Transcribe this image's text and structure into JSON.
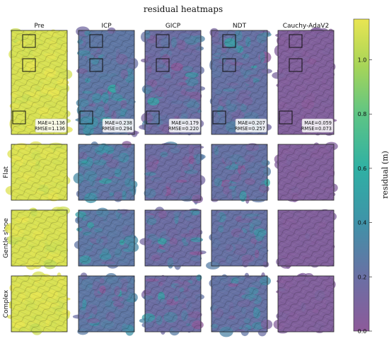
{
  "chart_data": {
    "type": "heatmap",
    "title": "residual heatmaps",
    "columns": [
      "Pre",
      "ICP",
      "GICP",
      "NDT",
      "Cauchy-AdaV2"
    ],
    "rows": [
      "Flat",
      "Gentle slope",
      "Complex"
    ],
    "metrics": [
      {
        "method": "Pre",
        "mae_label": "MAE=1.136",
        "rmse_label": "RMSE=1.136",
        "mean_residual": 1.1
      },
      {
        "method": "ICP",
        "mae_label": "MAE=0.238",
        "rmse_label": "RMSE=0.294",
        "mean_residual": 0.24
      },
      {
        "method": "GICP",
        "mae_label": "MAE=0.179",
        "rmse_label": "RMSE=0.220",
        "mean_residual": 0.18
      },
      {
        "method": "NDT",
        "mae_label": "MAE=0.207",
        "rmse_label": "RMSE=0.257",
        "mean_residual": 0.21
      },
      {
        "method": "Cauchy-AdaV2",
        "mae_label": "MAE=0.059",
        "rmse_label": "RMSE=0.073",
        "mean_residual": 0.06
      }
    ],
    "colorbar": {
      "label": "residual (m)",
      "range": [
        0.0,
        1.15
      ],
      "ticks": [
        "0.0",
        "0.2",
        "0.4",
        "0.6",
        "0.8",
        "1.0"
      ],
      "tick_values": [
        0.0,
        0.2,
        0.4,
        0.6,
        0.8,
        1.0
      ],
      "colormap": [
        "#8d5a9a",
        "#6b6fa4",
        "#3f93a8",
        "#2fb0a4",
        "#5cc486",
        "#a7d558",
        "#e9e552"
      ]
    }
  }
}
